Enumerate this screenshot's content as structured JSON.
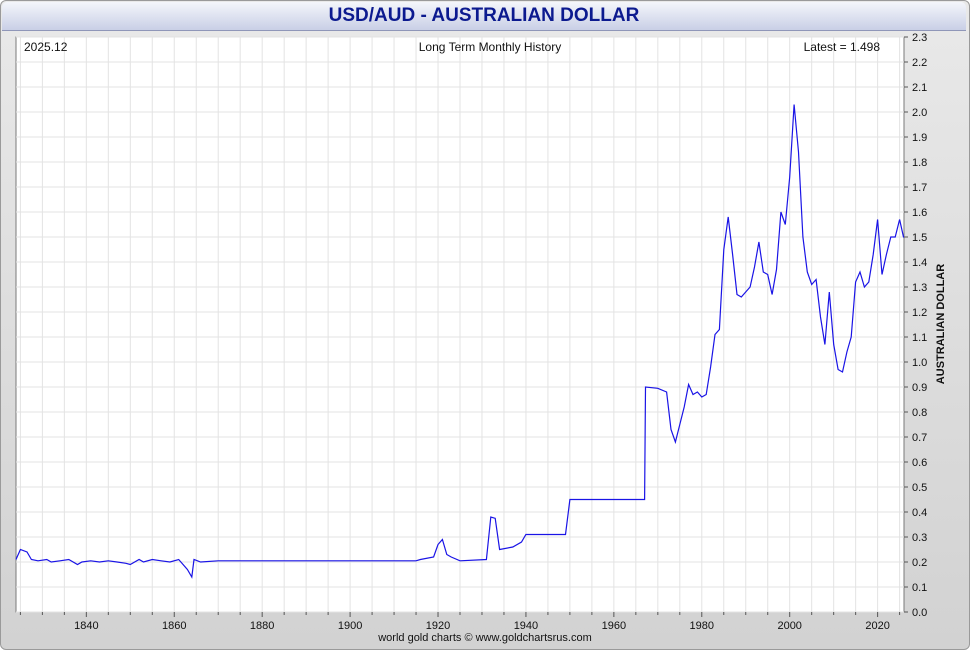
{
  "title": "USD/AUD - AUSTRALIAN DOLLAR",
  "footer": "world gold charts © www.goldchartsrus.com",
  "colors": {
    "line": "#1a14e6",
    "title": "#0c1a8f",
    "grid": "#e3e3e3"
  },
  "chart_data": {
    "type": "line",
    "header_left": "2025.12",
    "header_center": "Long Term Monthly History",
    "header_right": "Latest = 1.498",
    "ylabel": "AUSTRALIAN DOLLAR",
    "xlim": [
      1824,
      2026
    ],
    "ylim": [
      0,
      2.3
    ],
    "x_ticks": [
      "1840",
      "1860",
      "1880",
      "1900",
      "1920",
      "1940",
      "1960",
      "1980",
      "2000",
      "2020"
    ],
    "y_ticks": [
      "0.0",
      "0.1",
      "0.2",
      "0.3",
      "0.4",
      "0.5",
      "0.6",
      "0.7",
      "0.8",
      "0.9",
      "1.0",
      "1.1",
      "1.2",
      "1.3",
      "1.4",
      "1.5",
      "1.6",
      "1.7",
      "1.8",
      "1.9",
      "2.0",
      "2.1",
      "2.2",
      "2.3"
    ],
    "grid": true,
    "series": [
      {
        "points": [
          [
            1824.0,
            0.21
          ],
          [
            1825.0,
            0.25
          ],
          [
            1826.5,
            0.24
          ],
          [
            1827.5,
            0.21
          ],
          [
            1829.0,
            0.205
          ],
          [
            1831.0,
            0.21
          ],
          [
            1832.0,
            0.2
          ],
          [
            1834.0,
            0.205
          ],
          [
            1836.0,
            0.21
          ],
          [
            1838.0,
            0.19
          ],
          [
            1839.0,
            0.2
          ],
          [
            1841.0,
            0.205
          ],
          [
            1843.0,
            0.2
          ],
          [
            1845.0,
            0.205
          ],
          [
            1847.0,
            0.2
          ],
          [
            1849.0,
            0.195
          ],
          [
            1850.0,
            0.19
          ],
          [
            1852.0,
            0.21
          ],
          [
            1853.0,
            0.2
          ],
          [
            1855.0,
            0.21
          ],
          [
            1857.0,
            0.205
          ],
          [
            1859.0,
            0.2
          ],
          [
            1861.0,
            0.21
          ],
          [
            1863.0,
            0.17
          ],
          [
            1864.0,
            0.14
          ],
          [
            1864.5,
            0.21
          ],
          [
            1866.0,
            0.2
          ],
          [
            1870.0,
            0.205
          ],
          [
            1880.0,
            0.205
          ],
          [
            1890.0,
            0.205
          ],
          [
            1900.0,
            0.205
          ],
          [
            1910.0,
            0.205
          ],
          [
            1915.0,
            0.205
          ],
          [
            1916.0,
            0.21
          ],
          [
            1919.0,
            0.22
          ],
          [
            1920.0,
            0.27
          ],
          [
            1921.0,
            0.29
          ],
          [
            1922.0,
            0.23
          ],
          [
            1923.0,
            0.22
          ],
          [
            1925.0,
            0.205
          ],
          [
            1931.0,
            0.21
          ],
          [
            1932.0,
            0.38
          ],
          [
            1933.0,
            0.375
          ],
          [
            1934.0,
            0.25
          ],
          [
            1937.0,
            0.26
          ],
          [
            1939.0,
            0.28
          ],
          [
            1940.0,
            0.31
          ],
          [
            1945.0,
            0.31
          ],
          [
            1949.0,
            0.31
          ],
          [
            1950.0,
            0.45
          ],
          [
            1955.0,
            0.45
          ],
          [
            1960.0,
            0.45
          ],
          [
            1967.0,
            0.45
          ],
          [
            1967.2,
            0.9
          ],
          [
            1970.0,
            0.895
          ],
          [
            1972.0,
            0.88
          ],
          [
            1973.0,
            0.73
          ],
          [
            1974.0,
            0.68
          ],
          [
            1975.0,
            0.75
          ],
          [
            1976.0,
            0.82
          ],
          [
            1977.0,
            0.91
          ],
          [
            1978.0,
            0.87
          ],
          [
            1979.0,
            0.88
          ],
          [
            1980.0,
            0.86
          ],
          [
            1981.0,
            0.87
          ],
          [
            1982.0,
            0.98
          ],
          [
            1983.0,
            1.11
          ],
          [
            1984.0,
            1.13
          ],
          [
            1985.0,
            1.45
          ],
          [
            1986.0,
            1.58
          ],
          [
            1987.0,
            1.43
          ],
          [
            1988.0,
            1.27
          ],
          [
            1989.0,
            1.26
          ],
          [
            1990.0,
            1.28
          ],
          [
            1991.0,
            1.3
          ],
          [
            1992.0,
            1.38
          ],
          [
            1993.0,
            1.48
          ],
          [
            1994.0,
            1.36
          ],
          [
            1995.0,
            1.35
          ],
          [
            1996.0,
            1.27
          ],
          [
            1997.0,
            1.37
          ],
          [
            1998.0,
            1.6
          ],
          [
            1999.0,
            1.55
          ],
          [
            2000.0,
            1.74
          ],
          [
            2001.0,
            2.03
          ],
          [
            2002.0,
            1.84
          ],
          [
            2003.0,
            1.5
          ],
          [
            2004.0,
            1.36
          ],
          [
            2005.0,
            1.31
          ],
          [
            2006.0,
            1.33
          ],
          [
            2007.0,
            1.18
          ],
          [
            2008.0,
            1.07
          ],
          [
            2009.0,
            1.28
          ],
          [
            2010.0,
            1.07
          ],
          [
            2011.0,
            0.97
          ],
          [
            2012.0,
            0.96
          ],
          [
            2013.0,
            1.04
          ],
          [
            2014.0,
            1.1
          ],
          [
            2015.0,
            1.32
          ],
          [
            2016.0,
            1.36
          ],
          [
            2017.0,
            1.3
          ],
          [
            2018.0,
            1.32
          ],
          [
            2019.0,
            1.43
          ],
          [
            2020.0,
            1.57
          ],
          [
            2021.0,
            1.35
          ],
          [
            2022.0,
            1.43
          ],
          [
            2023.0,
            1.5
          ],
          [
            2024.0,
            1.5
          ],
          [
            2025.0,
            1.57
          ],
          [
            2025.9,
            1.498
          ]
        ]
      }
    ]
  }
}
